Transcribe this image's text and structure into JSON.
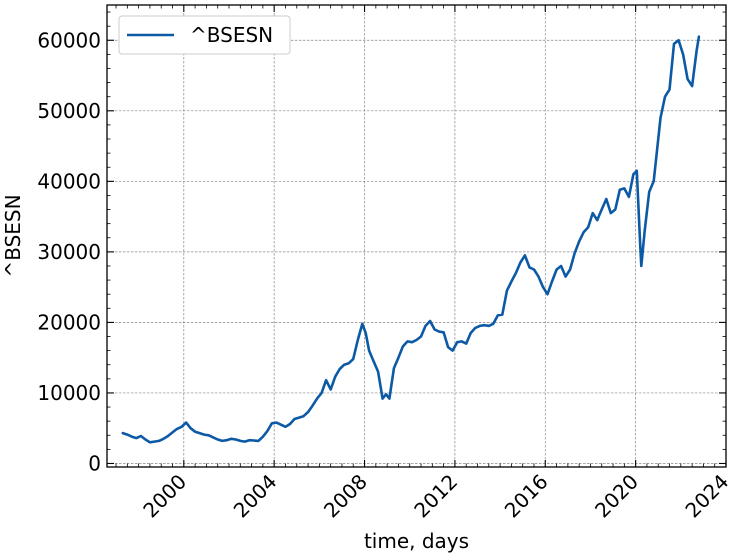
{
  "chart_data": {
    "type": "line",
    "title": "",
    "xlabel": "time, days",
    "ylabel": "^BSESN",
    "xlim": [
      1996.6,
      2024.0
    ],
    "ylim": [
      -500,
      65000
    ],
    "x_ticks": [
      2000,
      2004,
      2008,
      2012,
      2016,
      2020,
      2024
    ],
    "x_tick_labels": [
      "2000",
      "2004",
      "2008",
      "2012",
      "2016",
      "2020",
      "2024"
    ],
    "y_ticks": [
      0,
      10000,
      20000,
      30000,
      40000,
      50000,
      60000
    ],
    "y_tick_labels": [
      "0",
      "10000",
      "20000",
      "30000",
      "40000",
      "50000",
      "60000"
    ],
    "grid": true,
    "legend": {
      "position": "top-left",
      "entries": [
        "^BSESN"
      ]
    },
    "series": [
      {
        "name": "^BSESN",
        "color": "#0c5aa6",
        "x": [
          1997.3,
          1997.5,
          1997.7,
          1997.9,
          1998.1,
          1998.3,
          1998.5,
          1998.7,
          1998.9,
          1999.1,
          1999.3,
          1999.5,
          1999.7,
          1999.9,
          2000.1,
          2000.3,
          2000.5,
          2000.7,
          2000.9,
          2001.1,
          2001.3,
          2001.5,
          2001.7,
          2001.9,
          2002.1,
          2002.3,
          2002.5,
          2002.7,
          2002.9,
          2003.1,
          2003.3,
          2003.5,
          2003.7,
          2003.9,
          2004.1,
          2004.3,
          2004.5,
          2004.7,
          2004.9,
          2005.1,
          2005.3,
          2005.5,
          2005.7,
          2005.9,
          2006.1,
          2006.3,
          2006.5,
          2006.7,
          2006.9,
          2007.1,
          2007.3,
          2007.5,
          2007.7,
          2007.9,
          2008.05,
          2008.2,
          2008.4,
          2008.6,
          2008.8,
          2008.95,
          2009.1,
          2009.3,
          2009.5,
          2009.7,
          2009.9,
          2010.1,
          2010.3,
          2010.5,
          2010.7,
          2010.9,
          2011.1,
          2011.3,
          2011.5,
          2011.7,
          2011.9,
          2012.1,
          2012.3,
          2012.5,
          2012.7,
          2012.9,
          2013.1,
          2013.3,
          2013.5,
          2013.7,
          2013.9,
          2014.1,
          2014.3,
          2014.5,
          2014.7,
          2014.9,
          2015.1,
          2015.3,
          2015.5,
          2015.7,
          2015.9,
          2016.1,
          2016.3,
          2016.5,
          2016.7,
          2016.9,
          2017.1,
          2017.3,
          2017.5,
          2017.7,
          2017.9,
          2018.1,
          2018.3,
          2018.5,
          2018.7,
          2018.9,
          2019.1,
          2019.3,
          2019.5,
          2019.7,
          2019.9,
          2020.05,
          2020.2,
          2020.25,
          2020.4,
          2020.6,
          2020.8,
          2020.95,
          2021.1,
          2021.3,
          2021.5,
          2021.7,
          2021.9,
          2022.1,
          2022.3,
          2022.5,
          2022.7,
          2022.8
        ],
        "y": [
          4300,
          4100,
          3800,
          3600,
          3900,
          3400,
          3000,
          3100,
          3200,
          3500,
          3900,
          4400,
          4900,
          5200,
          5800,
          5000,
          4500,
          4300,
          4100,
          4000,
          3700,
          3400,
          3200,
          3300,
          3500,
          3400,
          3200,
          3100,
          3300,
          3250,
          3200,
          3800,
          4600,
          5700,
          5800,
          5500,
          5200,
          5600,
          6300,
          6500,
          6700,
          7300,
          8200,
          9200,
          10000,
          11800,
          10500,
          12300,
          13400,
          14000,
          14200,
          14800,
          17500,
          19800,
          18500,
          16000,
          14500,
          13000,
          9200,
          9800,
          9200,
          13500,
          15000,
          16600,
          17300,
          17200,
          17500,
          18000,
          19500,
          20200,
          19000,
          18700,
          18600,
          16500,
          16000,
          17200,
          17300,
          17000,
          18500,
          19200,
          19500,
          19600,
          19500,
          19800,
          21000,
          21100,
          24500,
          25800,
          27000,
          28500,
          29500,
          27800,
          27500,
          26500,
          25000,
          24000,
          25800,
          27500,
          28000,
          26500,
          27500,
          29800,
          31500,
          32800,
          33500,
          35500,
          34500,
          36000,
          37500,
          35500,
          36000,
          38800,
          39000,
          37800,
          41000,
          41500,
          31000,
          28000,
          33000,
          38500,
          40000,
          44500,
          49000,
          52000,
          53000,
          59500,
          60000,
          58000,
          54500,
          53500,
          58500,
          60500
        ]
      }
    ]
  }
}
